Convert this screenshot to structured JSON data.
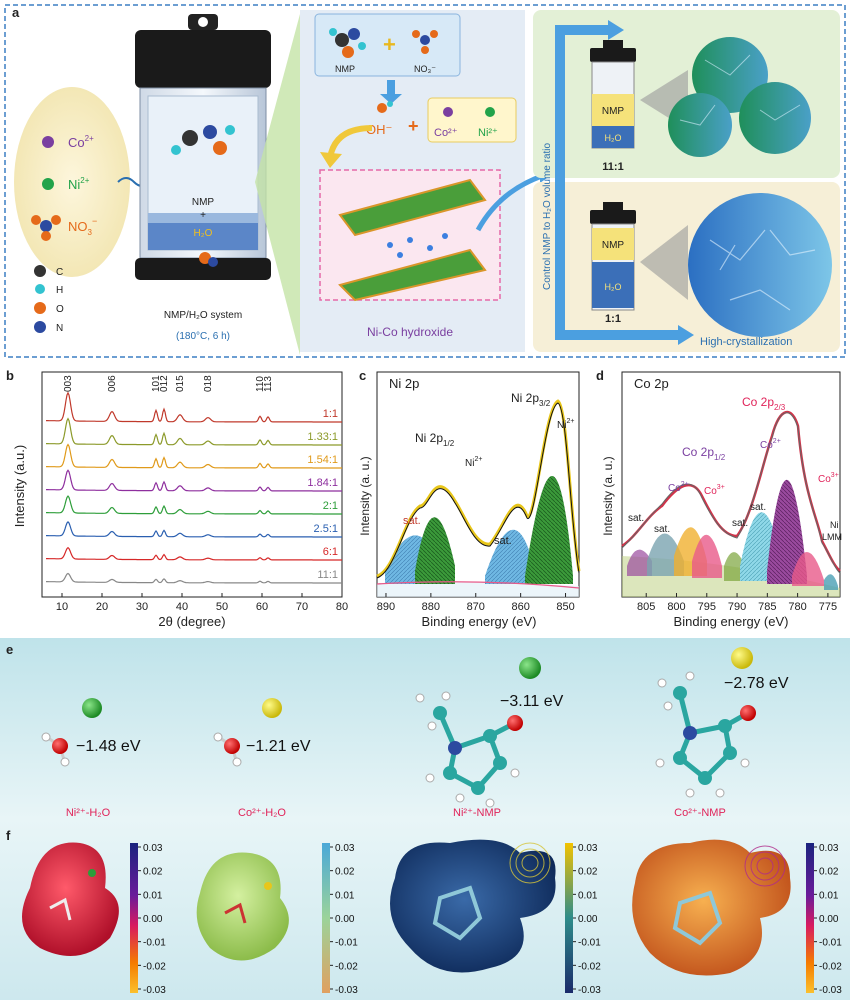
{
  "panel_a": {
    "label": "a",
    "ions": {
      "co": "Co",
      "co_sup": "2+",
      "ni": "Ni",
      "ni_sup": "2+",
      "no3": "NO",
      "no3_sub": "3",
      "no3_sup": "−"
    },
    "atoms": [
      "C",
      "H",
      "O",
      "N"
    ],
    "reactor": {
      "nmp": "NMP",
      "plus": "+",
      "h2o": "H₂O"
    },
    "system_caption": "NMP/H₂O system",
    "conditions": "(180°C, 6 h)",
    "mid": {
      "nmp": "NMP",
      "no3": "NO₃⁻",
      "oh": "OH⁻",
      "co": "Co²⁺",
      "ni": "Ni²⁺",
      "hydroxide": "Ni-Co hydroxide"
    },
    "right": {
      "vertical": "Control NMP to H₂O volume ratio",
      "ratio_top": "11:1",
      "ratio_bottom": "1:1",
      "nmp": "NMP",
      "h2o": "H₂O",
      "high_cryst": "High-crystallization"
    }
  },
  "panel_b": {
    "label": "b",
    "chart_data": {
      "type": "line",
      "xlabel": "2θ (degree)",
      "ylabel": "Intensity (a.u.)",
      "xlim": [
        5,
        80
      ],
      "x_ticks": [
        10,
        20,
        30,
        40,
        50,
        60,
        70,
        80
      ],
      "peak_labels": [
        {
          "text": "003",
          "x": 11.5
        },
        {
          "text": "006",
          "x": 22.5
        },
        {
          "text": "101",
          "x": 33.5
        },
        {
          "text": "012",
          "x": 35.5
        },
        {
          "text": "015",
          "x": 39.5
        },
        {
          "text": "018",
          "x": 46.5
        },
        {
          "text": "110",
          "x": 59.5
        },
        {
          "text": "113",
          "x": 61.5
        }
      ],
      "series": [
        {
          "name": "1:1",
          "color": "#c0392b"
        },
        {
          "name": "1.33:1",
          "color": "#8c9a2a"
        },
        {
          "name": "1.54:1",
          "color": "#e09a1a"
        },
        {
          "name": "1.84:1",
          "color": "#8e2f9e"
        },
        {
          "name": "2:1",
          "color": "#2e9e3a"
        },
        {
          "name": "2.5:1",
          "color": "#2a5fb0"
        },
        {
          "name": "6:1",
          "color": "#d62828"
        },
        {
          "name": "11:1",
          "color": "#888888"
        }
      ]
    }
  },
  "panel_c": {
    "label": "c",
    "chart_data": {
      "type": "line",
      "title": "Ni 2p",
      "xlabel": "Binding energy (eV)",
      "ylabel": "Intensity (a. u.)",
      "xlim": [
        892,
        847
      ],
      "x_ticks": [
        890,
        880,
        870,
        860,
        850
      ],
      "annotations": [
        "Ni 2p3/2",
        "Ni 2p1/2",
        "Ni²⁺",
        "Ni²⁺",
        "sat.",
        "sat."
      ]
    }
  },
  "panel_d": {
    "label": "d",
    "chart_data": {
      "type": "line",
      "title": "Co 2p",
      "xlabel": "Binding energy (eV)",
      "ylabel": "Intensity (a. u.)",
      "xlim": [
        809,
        773
      ],
      "x_ticks": [
        805,
        800,
        795,
        790,
        785,
        780,
        775
      ],
      "annotations": [
        "Co 2p2/3",
        "Co 2p1/2",
        "Co²⁺",
        "Co³⁺",
        "Co²⁺",
        "Co³⁺",
        "sat.",
        "sat.",
        "sat.",
        "sat.",
        "Ni LMM"
      ]
    }
  },
  "panel_e": {
    "label": "e",
    "items": [
      {
        "energy": "−1.48 eV",
        "caption": "Ni²⁺-H₂O"
      },
      {
        "energy": "−1.21 eV",
        "caption": "Co²⁺-H₂O"
      },
      {
        "energy": "−3.11 eV",
        "caption": "Ni²⁺-NMP"
      },
      {
        "energy": "−2.78 eV",
        "caption": "Co²⁺-NMP"
      }
    ]
  },
  "panel_f": {
    "label": "f",
    "colorbar_ticks": [
      "0.03",
      "0.02",
      "0.01",
      "0.00",
      "-0.01",
      "-0.02",
      "-0.03"
    ]
  }
}
